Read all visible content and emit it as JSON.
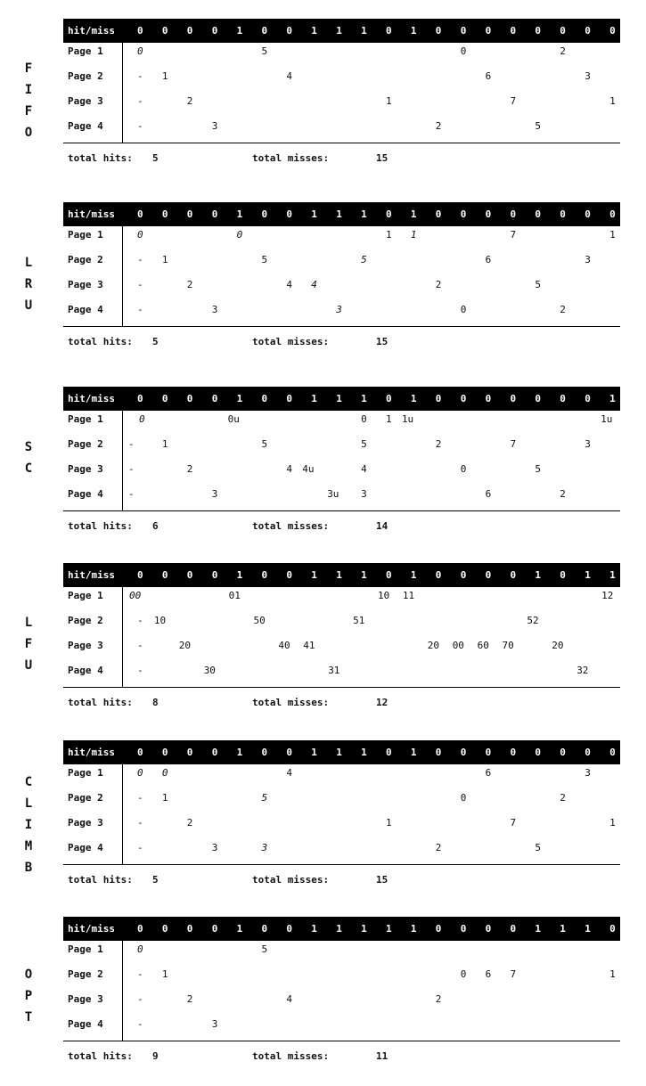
{
  "header_label": "hit/miss",
  "row_labels": [
    "Page 1",
    "Page 2",
    "Page 3",
    "Page 4"
  ],
  "totals_labels": {
    "hits": "total hits:",
    "misses": "total misses:"
  },
  "sections": [
    {
      "id": "fifo",
      "label": "F\nI\nF\nO",
      "hitmiss": [
        "0",
        "0",
        "0",
        "0",
        "1",
        "0",
        "0",
        "1",
        "1",
        "1",
        "0",
        "1",
        "0",
        "0",
        "0",
        "0",
        "0",
        "0",
        "0",
        "0"
      ],
      "cells": [
        {
          "row": 0,
          "col": 0,
          "text": "0",
          "italic": true
        },
        {
          "row": 0,
          "col": 5,
          "text": "5"
        },
        {
          "row": 0,
          "col": 13,
          "text": "0"
        },
        {
          "row": 0,
          "col": 17,
          "text": "2"
        },
        {
          "row": 1,
          "col": 0,
          "text": "-"
        },
        {
          "row": 1,
          "col": 1,
          "text": "1"
        },
        {
          "row": 1,
          "col": 6,
          "text": "4"
        },
        {
          "row": 1,
          "col": 14,
          "text": "6"
        },
        {
          "row": 1,
          "col": 18,
          "text": "3"
        },
        {
          "row": 2,
          "col": 0,
          "text": "-"
        },
        {
          "row": 2,
          "col": 2,
          "text": "2"
        },
        {
          "row": 2,
          "col": 10,
          "text": "1"
        },
        {
          "row": 2,
          "col": 15,
          "text": "7"
        },
        {
          "row": 2,
          "col": 19,
          "text": "1"
        },
        {
          "row": 3,
          "col": 0,
          "text": "-"
        },
        {
          "row": 3,
          "col": 3,
          "text": "3"
        },
        {
          "row": 3,
          "col": 12,
          "text": "2"
        },
        {
          "row": 3,
          "col": 16,
          "text": "5"
        }
      ],
      "hits": "5",
      "misses": "15"
    },
    {
      "id": "lru",
      "label": "L\nR\nU",
      "hitmiss": [
        "0",
        "0",
        "0",
        "0",
        "1",
        "0",
        "0",
        "1",
        "1",
        "1",
        "0",
        "1",
        "0",
        "0",
        "0",
        "0",
        "0",
        "0",
        "0",
        "0"
      ],
      "cells": [
        {
          "row": 0,
          "col": 0,
          "text": "0",
          "italic": true
        },
        {
          "row": 0,
          "col": 4,
          "text": "0",
          "italic": true
        },
        {
          "row": 0,
          "col": 10,
          "text": "1"
        },
        {
          "row": 0,
          "col": 11,
          "text": "1",
          "italic": true
        },
        {
          "row": 0,
          "col": 15,
          "text": "7"
        },
        {
          "row": 0,
          "col": 19,
          "text": "1"
        },
        {
          "row": 1,
          "col": 0,
          "text": "-"
        },
        {
          "row": 1,
          "col": 1,
          "text": "1"
        },
        {
          "row": 1,
          "col": 5,
          "text": "5"
        },
        {
          "row": 1,
          "col": 9,
          "text": "5",
          "italic": true
        },
        {
          "row": 1,
          "col": 14,
          "text": "6"
        },
        {
          "row": 1,
          "col": 18,
          "text": "3"
        },
        {
          "row": 2,
          "col": 0,
          "text": "-"
        },
        {
          "row": 2,
          "col": 2,
          "text": "2"
        },
        {
          "row": 2,
          "col": 6,
          "text": "4"
        },
        {
          "row": 2,
          "col": 7,
          "text": "4",
          "italic": true
        },
        {
          "row": 2,
          "col": 12,
          "text": "2"
        },
        {
          "row": 2,
          "col": 16,
          "text": "5"
        },
        {
          "row": 3,
          "col": 0,
          "text": "-"
        },
        {
          "row": 3,
          "col": 3,
          "text": "3"
        },
        {
          "row": 3,
          "col": 8,
          "text": "3",
          "italic": true
        },
        {
          "row": 3,
          "col": 13,
          "text": "0"
        },
        {
          "row": 3,
          "col": 17,
          "text": "2"
        }
      ],
      "hits": "5",
      "misses": "15"
    },
    {
      "id": "sc",
      "label": "S\nC",
      "hitmiss": [
        "0",
        "0",
        "0",
        "0",
        "1",
        "0",
        "0",
        "1",
        "1",
        "1",
        "0",
        "1",
        "0",
        "0",
        "0",
        "0",
        "0",
        "0",
        "0",
        "1"
      ],
      "cells": [
        {
          "row": 0,
          "col": 0,
          "text": "0",
          "italic": true,
          "dx": 2
        },
        {
          "row": 0,
          "col": 4,
          "text": "0u",
          "dx": -10
        },
        {
          "row": 0,
          "col": 9,
          "text": "0"
        },
        {
          "row": 0,
          "col": 10,
          "text": "1"
        },
        {
          "row": 0,
          "col": 11,
          "text": "1u",
          "dx": -10
        },
        {
          "row": 0,
          "col": 19,
          "text": "1u",
          "dx": -10
        },
        {
          "row": 1,
          "col": 0,
          "text": "-",
          "dx": -10
        },
        {
          "row": 1,
          "col": 1,
          "text": "1"
        },
        {
          "row": 1,
          "col": 5,
          "text": "5"
        },
        {
          "row": 1,
          "col": 9,
          "text": "5"
        },
        {
          "row": 1,
          "col": 12,
          "text": "2"
        },
        {
          "row": 1,
          "col": 15,
          "text": "7"
        },
        {
          "row": 1,
          "col": 18,
          "text": "3"
        },
        {
          "row": 2,
          "col": 0,
          "text": "-",
          "dx": -10
        },
        {
          "row": 2,
          "col": 2,
          "text": "2"
        },
        {
          "row": 2,
          "col": 6,
          "text": "4"
        },
        {
          "row": 2,
          "col": 7,
          "text": "4u",
          "dx": -10
        },
        {
          "row": 2,
          "col": 9,
          "text": "4"
        },
        {
          "row": 2,
          "col": 13,
          "text": "0"
        },
        {
          "row": 2,
          "col": 16,
          "text": "5"
        },
        {
          "row": 3,
          "col": 0,
          "text": "-",
          "dx": -10
        },
        {
          "row": 3,
          "col": 3,
          "text": "3"
        },
        {
          "row": 3,
          "col": 8,
          "text": "3u",
          "dx": -10
        },
        {
          "row": 3,
          "col": 9,
          "text": "3"
        },
        {
          "row": 3,
          "col": 14,
          "text": "6"
        },
        {
          "row": 3,
          "col": 17,
          "text": "2"
        }
      ],
      "hits": "6",
      "misses": "14"
    },
    {
      "id": "lfu",
      "label": "L\nF\nU",
      "hitmiss": [
        "0",
        "0",
        "0",
        "0",
        "1",
        "0",
        "0",
        "1",
        "1",
        "1",
        "0",
        "1",
        "0",
        "0",
        "0",
        "0",
        "1",
        "0",
        "1",
        "1"
      ],
      "cells": [
        {
          "row": 0,
          "col": 0,
          "text": "00",
          "italic": true,
          "dx": -9
        },
        {
          "row": 0,
          "col": 4,
          "text": "01",
          "dx": -9
        },
        {
          "row": 0,
          "col": 10,
          "text": "10",
          "dx": -9
        },
        {
          "row": 0,
          "col": 11,
          "text": "11",
          "dx": -9
        },
        {
          "row": 0,
          "col": 19,
          "text": "12",
          "dx": -9
        },
        {
          "row": 1,
          "col": 0,
          "text": "-"
        },
        {
          "row": 1,
          "col": 1,
          "text": "10",
          "dx": -9
        },
        {
          "row": 1,
          "col": 5,
          "text": "50",
          "dx": -9
        },
        {
          "row": 1,
          "col": 9,
          "text": "51",
          "dx": -9
        },
        {
          "row": 1,
          "col": 16,
          "text": "52",
          "dx": -9
        },
        {
          "row": 2,
          "col": 0,
          "text": "-"
        },
        {
          "row": 2,
          "col": 2,
          "text": "20",
          "dx": -9
        },
        {
          "row": 2,
          "col": 6,
          "text": "40",
          "dx": -9
        },
        {
          "row": 2,
          "col": 7,
          "text": "41",
          "dx": -9
        },
        {
          "row": 2,
          "col": 12,
          "text": "20",
          "dx": -9
        },
        {
          "row": 2,
          "col": 13,
          "text": "00",
          "dx": -9
        },
        {
          "row": 2,
          "col": 14,
          "text": "60",
          "dx": -9
        },
        {
          "row": 2,
          "col": 15,
          "text": "70",
          "dx": -9
        },
        {
          "row": 2,
          "col": 17,
          "text": "20",
          "dx": -9
        },
        {
          "row": 3,
          "col": 0,
          "text": "-"
        },
        {
          "row": 3,
          "col": 3,
          "text": "30",
          "dx": -9
        },
        {
          "row": 3,
          "col": 8,
          "text": "31",
          "dx": -9
        },
        {
          "row": 3,
          "col": 18,
          "text": "32",
          "dx": -9
        }
      ],
      "hits": "8",
      "misses": "12"
    },
    {
      "id": "climb",
      "label": "C\nL\nI\nM\nB",
      "hitmiss": [
        "0",
        "0",
        "0",
        "0",
        "1",
        "0",
        "0",
        "1",
        "1",
        "1",
        "0",
        "1",
        "0",
        "0",
        "0",
        "0",
        "0",
        "0",
        "0",
        "0"
      ],
      "cells": [
        {
          "row": 0,
          "col": 0,
          "text": "0",
          "italic": true
        },
        {
          "row": 0,
          "col": 1,
          "text": "0",
          "italic": true
        },
        {
          "row": 0,
          "col": 6,
          "text": "4"
        },
        {
          "row": 0,
          "col": 14,
          "text": "6"
        },
        {
          "row": 0,
          "col": 18,
          "text": "3"
        },
        {
          "row": 1,
          "col": 0,
          "text": "-"
        },
        {
          "row": 1,
          "col": 1,
          "text": "1"
        },
        {
          "row": 1,
          "col": 5,
          "text": "5",
          "italic": true
        },
        {
          "row": 1,
          "col": 13,
          "text": "0"
        },
        {
          "row": 1,
          "col": 17,
          "text": "2"
        },
        {
          "row": 2,
          "col": 0,
          "text": "-"
        },
        {
          "row": 2,
          "col": 2,
          "text": "2"
        },
        {
          "row": 2,
          "col": 10,
          "text": "1"
        },
        {
          "row": 2,
          "col": 15,
          "text": "7"
        },
        {
          "row": 2,
          "col": 19,
          "text": "1"
        },
        {
          "row": 3,
          "col": 0,
          "text": "-"
        },
        {
          "row": 3,
          "col": 3,
          "text": "3"
        },
        {
          "row": 3,
          "col": 5,
          "text": "3",
          "italic": true
        },
        {
          "row": 3,
          "col": 12,
          "text": "2"
        },
        {
          "row": 3,
          "col": 16,
          "text": "5"
        }
      ],
      "hits": "5",
      "misses": "15"
    },
    {
      "id": "opt",
      "label": "O\nP\nT",
      "hitmiss": [
        "0",
        "0",
        "0",
        "0",
        "1",
        "0",
        "0",
        "1",
        "1",
        "1",
        "1",
        "1",
        "0",
        "0",
        "0",
        "0",
        "1",
        "1",
        "1",
        "0"
      ],
      "cells": [
        {
          "row": 0,
          "col": 0,
          "text": "0",
          "italic": true
        },
        {
          "row": 0,
          "col": 5,
          "text": "5"
        },
        {
          "row": 1,
          "col": 0,
          "text": "-"
        },
        {
          "row": 1,
          "col": 1,
          "text": "1"
        },
        {
          "row": 1,
          "col": 13,
          "text": "0"
        },
        {
          "row": 1,
          "col": 14,
          "text": "6"
        },
        {
          "row": 1,
          "col": 15,
          "text": "7"
        },
        {
          "row": 1,
          "col": 19,
          "text": "1"
        },
        {
          "row": 2,
          "col": 0,
          "text": "-"
        },
        {
          "row": 2,
          "col": 2,
          "text": "2"
        },
        {
          "row": 2,
          "col": 6,
          "text": "4"
        },
        {
          "row": 2,
          "col": 12,
          "text": "2"
        },
        {
          "row": 3,
          "col": 0,
          "text": "-"
        },
        {
          "row": 3,
          "col": 3,
          "text": "3"
        }
      ],
      "hits": "9",
      "misses": "11"
    }
  ]
}
